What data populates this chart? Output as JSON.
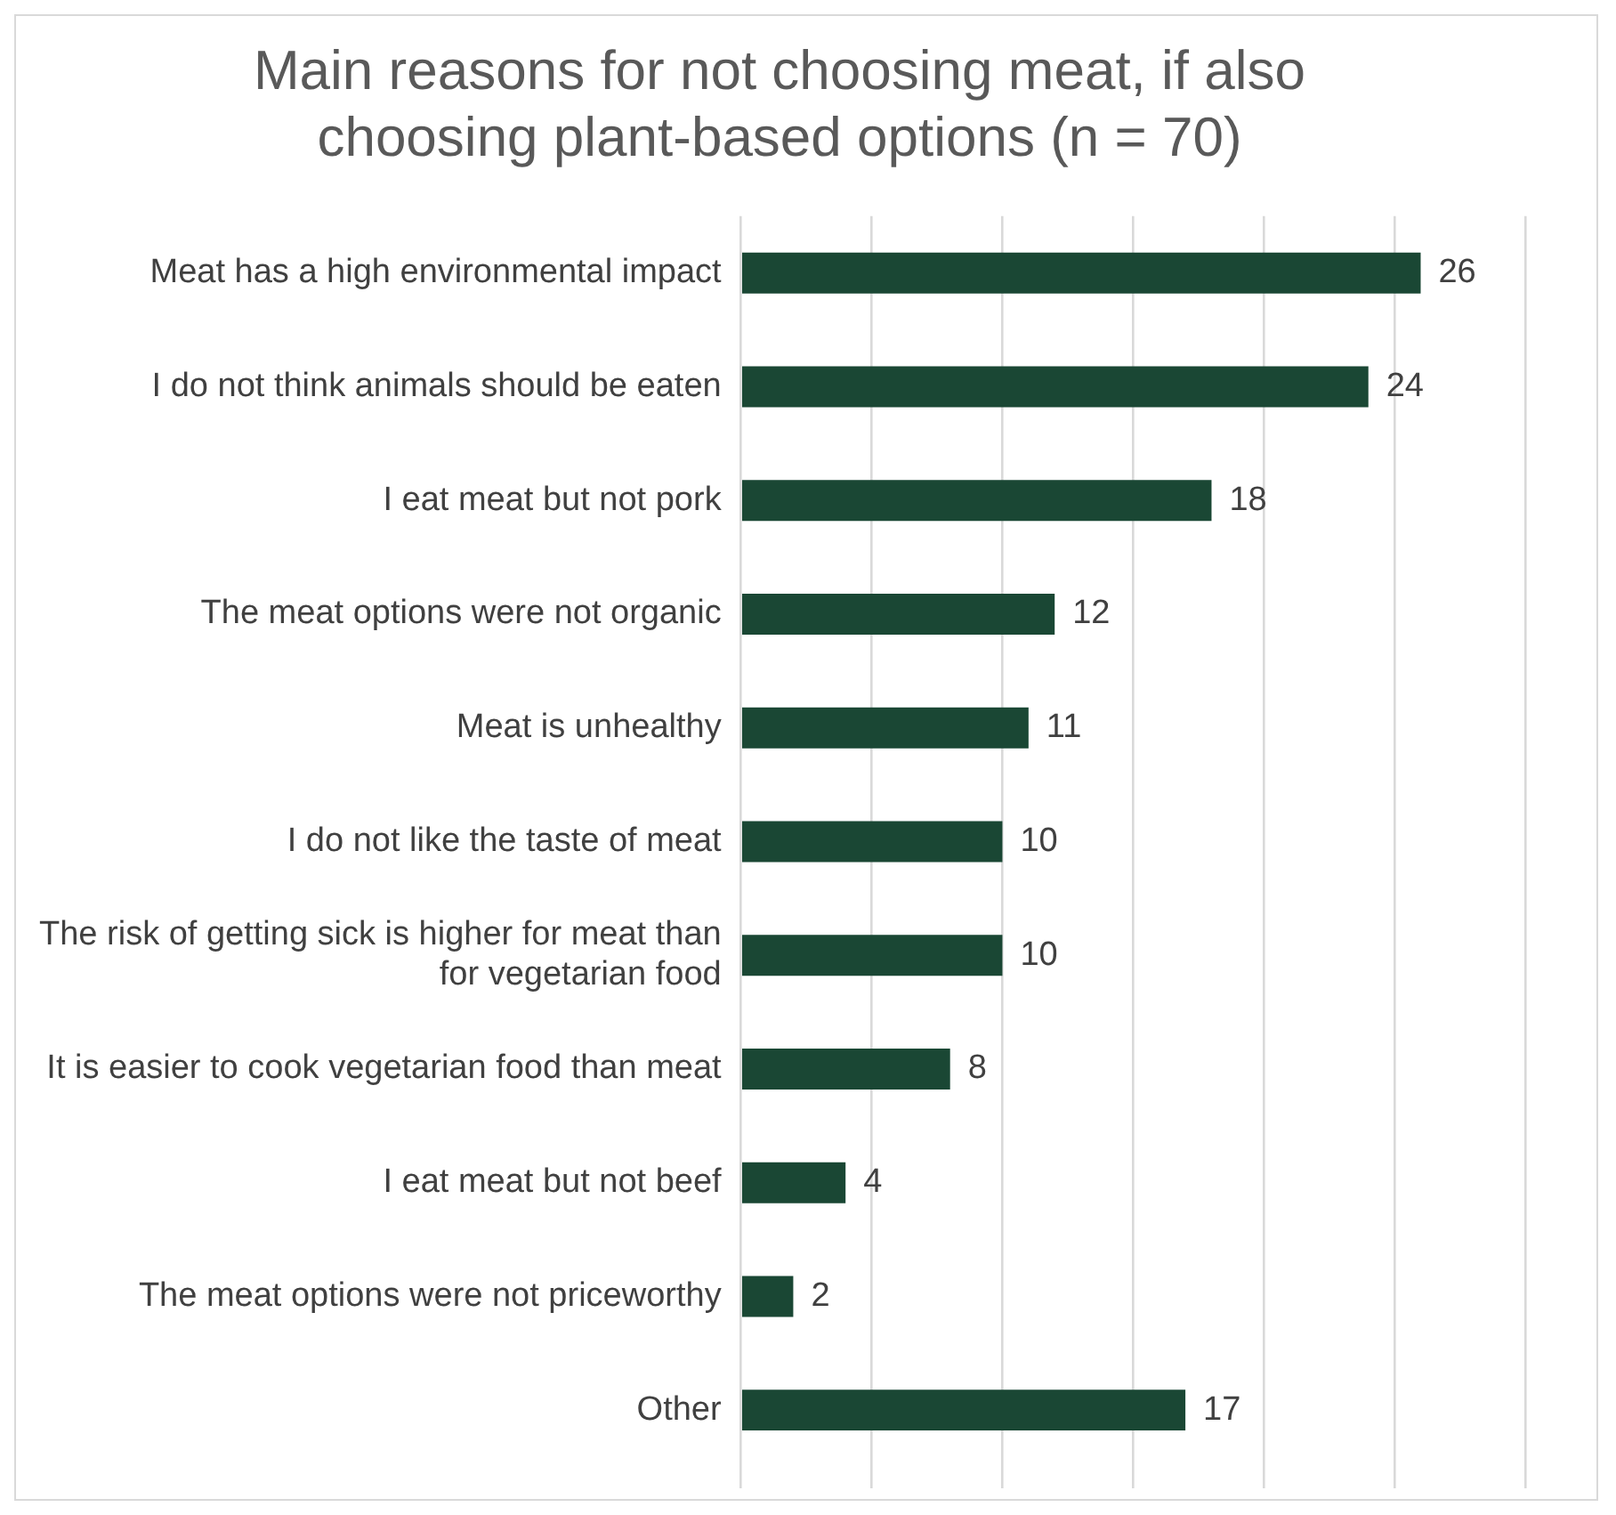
{
  "chart_data": {
    "type": "bar",
    "orientation": "horizontal",
    "title": "Main reasons for not choosing meat, if also choosing plant-based options (n = 70)",
    "categories": [
      "Meat has a high environmental impact",
      "I do not think animals should be eaten",
      "I eat meat but not pork",
      "The meat options were not organic",
      "Meat is unhealthy",
      "I do not like the taste of meat",
      "The risk of getting sick is higher for meat than for vegetarian food",
      "It is easier to cook vegetarian food than meat",
      "I eat meat but not beef",
      "The meat options were not priceworthy",
      "Other"
    ],
    "values": [
      26,
      24,
      18,
      12,
      11,
      10,
      10,
      8,
      4,
      2,
      17
    ],
    "color": "#1a4734",
    "xlim": [
      0,
      30
    ],
    "xticks": [
      {
        "value": 0,
        "label": null
      },
      {
        "value": 5,
        "label": null
      },
      {
        "value": 10,
        "label": null
      },
      {
        "value": 15,
        "label": null
      },
      {
        "value": 20,
        "label": null
      },
      {
        "value": 25,
        "label": null
      },
      {
        "value": 30,
        "label": null
      }
    ],
    "grid": "x",
    "data_labels": true,
    "tick_labels": "y"
  }
}
